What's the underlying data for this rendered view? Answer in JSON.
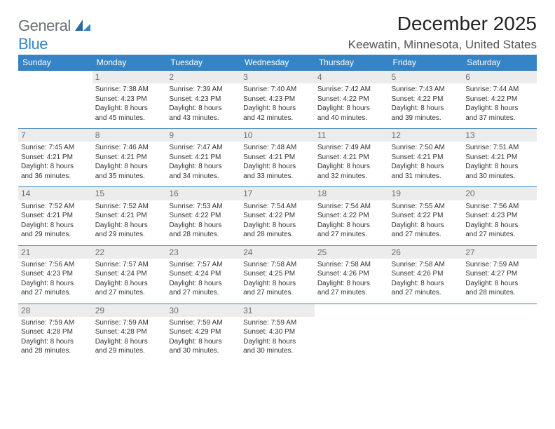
{
  "logo": {
    "general": "General",
    "blue": "Blue"
  },
  "title": "December 2025",
  "location": "Keewatin, Minnesota, United States",
  "header_bg": "#3585c6",
  "header_fg": "#ffffff",
  "daynum_bg": "#ececec",
  "weekdays": [
    "Sunday",
    "Monday",
    "Tuesday",
    "Wednesday",
    "Thursday",
    "Friday",
    "Saturday"
  ],
  "weeks": [
    [
      null,
      {
        "n": "1",
        "sr": "Sunrise: 7:38 AM",
        "ss": "Sunset: 4:23 PM",
        "d1": "Daylight: 8 hours",
        "d2": "and 45 minutes."
      },
      {
        "n": "2",
        "sr": "Sunrise: 7:39 AM",
        "ss": "Sunset: 4:23 PM",
        "d1": "Daylight: 8 hours",
        "d2": "and 43 minutes."
      },
      {
        "n": "3",
        "sr": "Sunrise: 7:40 AM",
        "ss": "Sunset: 4:23 PM",
        "d1": "Daylight: 8 hours",
        "d2": "and 42 minutes."
      },
      {
        "n": "4",
        "sr": "Sunrise: 7:42 AM",
        "ss": "Sunset: 4:22 PM",
        "d1": "Daylight: 8 hours",
        "d2": "and 40 minutes."
      },
      {
        "n": "5",
        "sr": "Sunrise: 7:43 AM",
        "ss": "Sunset: 4:22 PM",
        "d1": "Daylight: 8 hours",
        "d2": "and 39 minutes."
      },
      {
        "n": "6",
        "sr": "Sunrise: 7:44 AM",
        "ss": "Sunset: 4:22 PM",
        "d1": "Daylight: 8 hours",
        "d2": "and 37 minutes."
      }
    ],
    [
      {
        "n": "7",
        "sr": "Sunrise: 7:45 AM",
        "ss": "Sunset: 4:21 PM",
        "d1": "Daylight: 8 hours",
        "d2": "and 36 minutes."
      },
      {
        "n": "8",
        "sr": "Sunrise: 7:46 AM",
        "ss": "Sunset: 4:21 PM",
        "d1": "Daylight: 8 hours",
        "d2": "and 35 minutes."
      },
      {
        "n": "9",
        "sr": "Sunrise: 7:47 AM",
        "ss": "Sunset: 4:21 PM",
        "d1": "Daylight: 8 hours",
        "d2": "and 34 minutes."
      },
      {
        "n": "10",
        "sr": "Sunrise: 7:48 AM",
        "ss": "Sunset: 4:21 PM",
        "d1": "Daylight: 8 hours",
        "d2": "and 33 minutes."
      },
      {
        "n": "11",
        "sr": "Sunrise: 7:49 AM",
        "ss": "Sunset: 4:21 PM",
        "d1": "Daylight: 8 hours",
        "d2": "and 32 minutes."
      },
      {
        "n": "12",
        "sr": "Sunrise: 7:50 AM",
        "ss": "Sunset: 4:21 PM",
        "d1": "Daylight: 8 hours",
        "d2": "and 31 minutes."
      },
      {
        "n": "13",
        "sr": "Sunrise: 7:51 AM",
        "ss": "Sunset: 4:21 PM",
        "d1": "Daylight: 8 hours",
        "d2": "and 30 minutes."
      }
    ],
    [
      {
        "n": "14",
        "sr": "Sunrise: 7:52 AM",
        "ss": "Sunset: 4:21 PM",
        "d1": "Daylight: 8 hours",
        "d2": "and 29 minutes."
      },
      {
        "n": "15",
        "sr": "Sunrise: 7:52 AM",
        "ss": "Sunset: 4:21 PM",
        "d1": "Daylight: 8 hours",
        "d2": "and 29 minutes."
      },
      {
        "n": "16",
        "sr": "Sunrise: 7:53 AM",
        "ss": "Sunset: 4:22 PM",
        "d1": "Daylight: 8 hours",
        "d2": "and 28 minutes."
      },
      {
        "n": "17",
        "sr": "Sunrise: 7:54 AM",
        "ss": "Sunset: 4:22 PM",
        "d1": "Daylight: 8 hours",
        "d2": "and 28 minutes."
      },
      {
        "n": "18",
        "sr": "Sunrise: 7:54 AM",
        "ss": "Sunset: 4:22 PM",
        "d1": "Daylight: 8 hours",
        "d2": "and 27 minutes."
      },
      {
        "n": "19",
        "sr": "Sunrise: 7:55 AM",
        "ss": "Sunset: 4:22 PM",
        "d1": "Daylight: 8 hours",
        "d2": "and 27 minutes."
      },
      {
        "n": "20",
        "sr": "Sunrise: 7:56 AM",
        "ss": "Sunset: 4:23 PM",
        "d1": "Daylight: 8 hours",
        "d2": "and 27 minutes."
      }
    ],
    [
      {
        "n": "21",
        "sr": "Sunrise: 7:56 AM",
        "ss": "Sunset: 4:23 PM",
        "d1": "Daylight: 8 hours",
        "d2": "and 27 minutes."
      },
      {
        "n": "22",
        "sr": "Sunrise: 7:57 AM",
        "ss": "Sunset: 4:24 PM",
        "d1": "Daylight: 8 hours",
        "d2": "and 27 minutes."
      },
      {
        "n": "23",
        "sr": "Sunrise: 7:57 AM",
        "ss": "Sunset: 4:24 PM",
        "d1": "Daylight: 8 hours",
        "d2": "and 27 minutes."
      },
      {
        "n": "24",
        "sr": "Sunrise: 7:58 AM",
        "ss": "Sunset: 4:25 PM",
        "d1": "Daylight: 8 hours",
        "d2": "and 27 minutes."
      },
      {
        "n": "25",
        "sr": "Sunrise: 7:58 AM",
        "ss": "Sunset: 4:26 PM",
        "d1": "Daylight: 8 hours",
        "d2": "and 27 minutes."
      },
      {
        "n": "26",
        "sr": "Sunrise: 7:58 AM",
        "ss": "Sunset: 4:26 PM",
        "d1": "Daylight: 8 hours",
        "d2": "and 27 minutes."
      },
      {
        "n": "27",
        "sr": "Sunrise: 7:59 AM",
        "ss": "Sunset: 4:27 PM",
        "d1": "Daylight: 8 hours",
        "d2": "and 28 minutes."
      }
    ],
    [
      {
        "n": "28",
        "sr": "Sunrise: 7:59 AM",
        "ss": "Sunset: 4:28 PM",
        "d1": "Daylight: 8 hours",
        "d2": "and 28 minutes."
      },
      {
        "n": "29",
        "sr": "Sunrise: 7:59 AM",
        "ss": "Sunset: 4:28 PM",
        "d1": "Daylight: 8 hours",
        "d2": "and 29 minutes."
      },
      {
        "n": "30",
        "sr": "Sunrise: 7:59 AM",
        "ss": "Sunset: 4:29 PM",
        "d1": "Daylight: 8 hours",
        "d2": "and 30 minutes."
      },
      {
        "n": "31",
        "sr": "Sunrise: 7:59 AM",
        "ss": "Sunset: 4:30 PM",
        "d1": "Daylight: 8 hours",
        "d2": "and 30 minutes."
      },
      null,
      null,
      null
    ]
  ]
}
